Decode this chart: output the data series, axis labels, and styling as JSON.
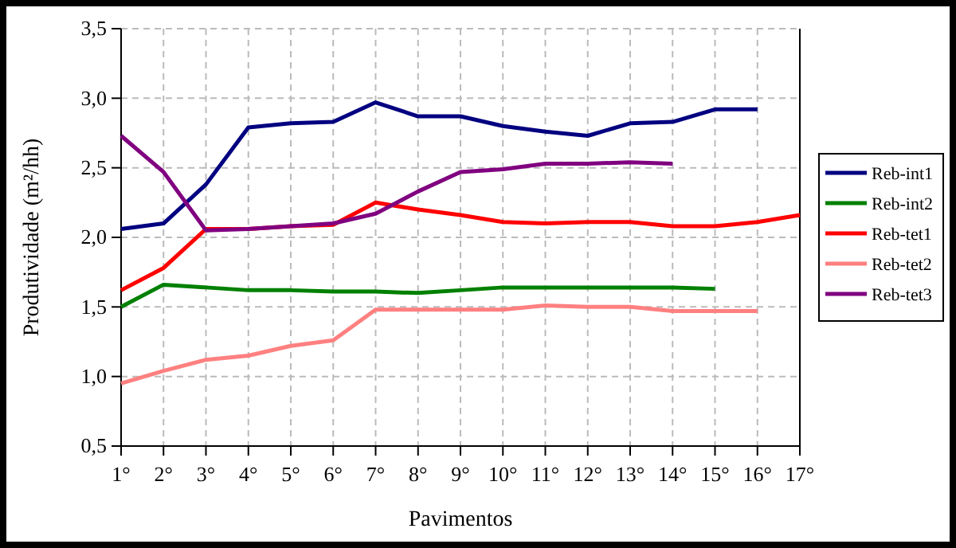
{
  "chart_data": {
    "type": "line",
    "xlabel": "Pavimentos",
    "ylabel": "Produtividade (m²/hh)",
    "categories": [
      "1°",
      "2°",
      "3°",
      "4°",
      "5°",
      "6°",
      "7°",
      "8°",
      "9°",
      "10°",
      "11°",
      "12°",
      "13°",
      "14°",
      "15°",
      "16°",
      "17°"
    ],
    "ylim": [
      0.5,
      3.5
    ],
    "yticks": [
      {
        "value": 0.5,
        "label": "0,5"
      },
      {
        "value": 1,
        "label": "1,0"
      },
      {
        "value": 1.5,
        "label": "1,5"
      },
      {
        "value": 2,
        "label": "2,0"
      },
      {
        "value": 2.5,
        "label": "2,5"
      },
      {
        "value": 3,
        "label": "3,0"
      },
      {
        "value": 3.5,
        "label": "3,5"
      }
    ],
    "grid": true,
    "legend": "right",
    "marker": "none",
    "line_style": "solid",
    "series": [
      {
        "name": "Reb-int1",
        "color": "#000080",
        "values": [
          2.06,
          2.1,
          2.38,
          2.79,
          2.82,
          2.83,
          2.97,
          2.87,
          2.87,
          2.8,
          2.76,
          2.73,
          2.82,
          2.83,
          2.92,
          2.92,
          null
        ]
      },
      {
        "name": "Reb-int2",
        "color": "#008000",
        "values": [
          1.5,
          1.66,
          1.64,
          1.62,
          1.62,
          1.61,
          1.61,
          1.6,
          1.62,
          1.64,
          1.64,
          1.64,
          1.64,
          1.64,
          1.63,
          null,
          null
        ]
      },
      {
        "name": "Reb-tet1",
        "color": "#ff0000",
        "values": [
          1.62,
          1.78,
          2.06,
          2.06,
          2.08,
          2.09,
          2.25,
          2.2,
          2.16,
          2.11,
          2.1,
          2.11,
          2.11,
          2.08,
          2.08,
          2.11,
          2.16
        ]
      },
      {
        "name": "Reb-tet2",
        "color": "#ff8080",
        "values": [
          0.95,
          1.04,
          1.12,
          1.15,
          1.22,
          1.26,
          1.48,
          1.48,
          1.48,
          1.48,
          1.51,
          1.5,
          1.5,
          1.47,
          1.47,
          1.47,
          null
        ]
      },
      {
        "name": "Reb-tet3",
        "color": "#800080",
        "values": [
          2.73,
          2.47,
          2.05,
          2.06,
          2.08,
          2.1,
          2.17,
          2.33,
          2.47,
          2.49,
          2.53,
          2.53,
          2.54,
          2.53,
          null,
          null,
          null
        ]
      }
    ]
  }
}
